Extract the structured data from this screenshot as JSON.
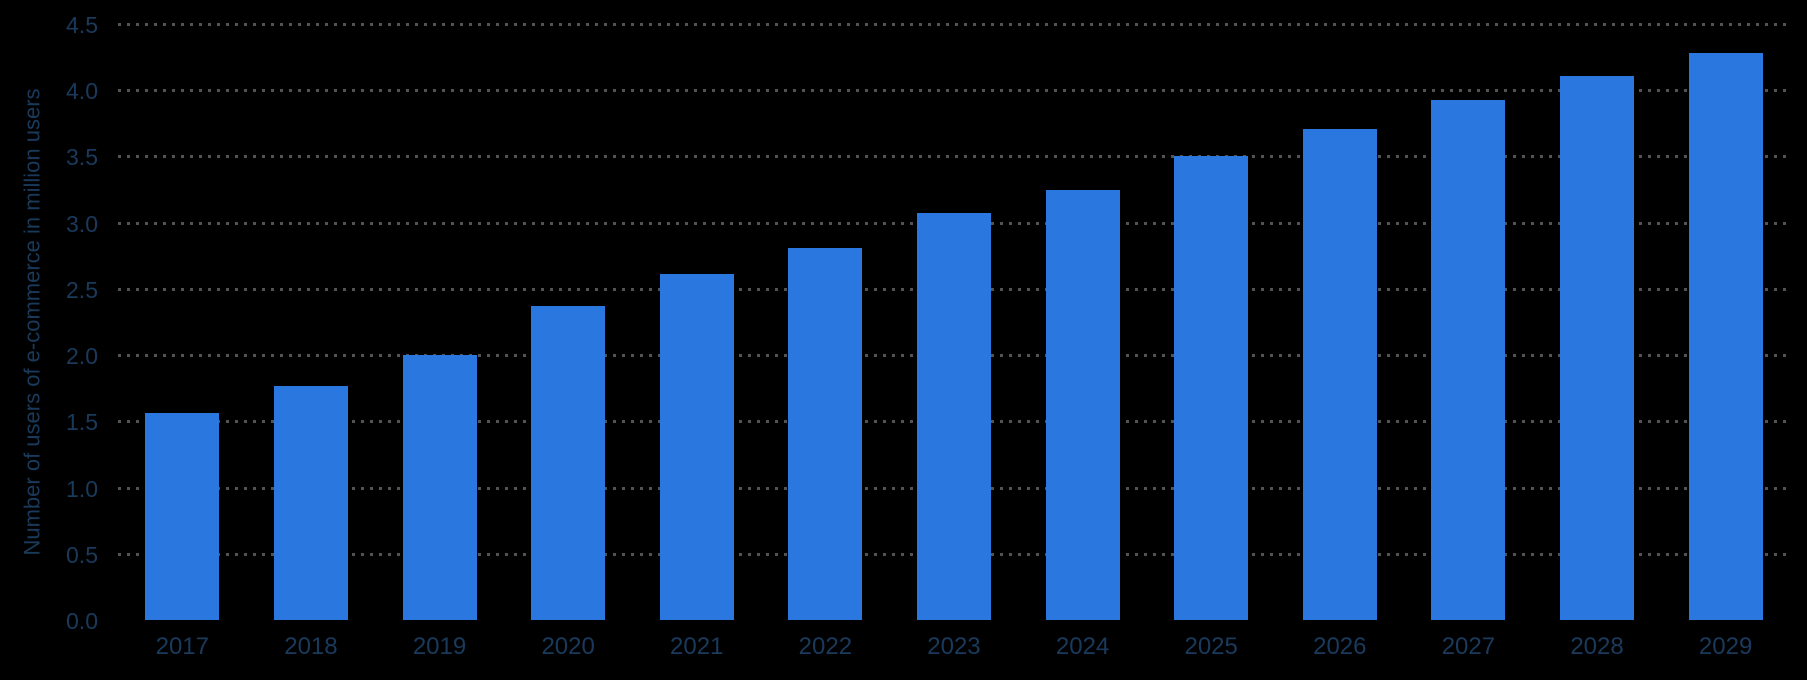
{
  "chart_data": {
    "type": "bar",
    "title": "",
    "xlabel": "",
    "ylabel": "Number of users of e-commerce in million users",
    "categories": [
      "2017",
      "2018",
      "2019",
      "2020",
      "2021",
      "2022",
      "2023",
      "2024",
      "2025",
      "2026",
      "2027",
      "2028",
      "2029"
    ],
    "values": [
      1.56,
      1.77,
      2.0,
      2.37,
      2.61,
      2.81,
      3.07,
      3.25,
      3.5,
      3.71,
      3.93,
      4.11,
      4.28
    ],
    "ylim": [
      0,
      4.5
    ],
    "ytick_step": 0.5,
    "ytick_labels": [
      "0.0",
      "0.5",
      "1.0",
      "1.5",
      "2.0",
      "2.5",
      "3.0",
      "3.5",
      "4.0",
      "4.5"
    ],
    "grid": "horizontal-dotted",
    "legend": "none"
  },
  "colors": {
    "background": "#000000",
    "bar": "#2A77E0",
    "axis_text": "#1A3A5C",
    "gridline_dot": "#535353"
  }
}
